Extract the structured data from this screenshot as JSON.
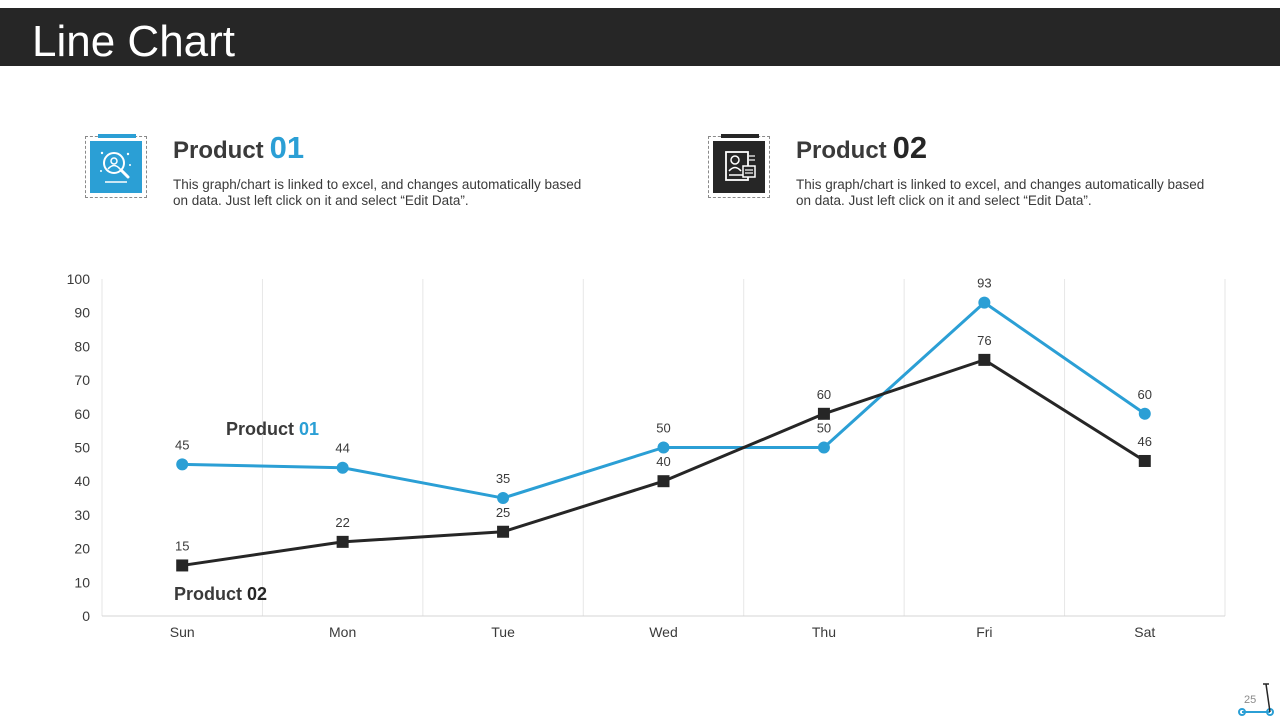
{
  "header": {
    "title": "Line Chart"
  },
  "colors": {
    "product1": "#2b9fd5",
    "product2": "#262626",
    "title_bar": "#262626"
  },
  "products": [
    {
      "name": "Product",
      "number": "01",
      "icon": "search-analytics-icon",
      "description": "This graph/chart is linked to excel,  and changes automatically based on data. Just left click on it and select “Edit Data”."
    },
    {
      "name": "Product",
      "number": "02",
      "icon": "profile-document-icon",
      "description": "This graph/chart is linked to excel,  and changes automatically based on data. Just left click on it and select “Edit Data”."
    }
  ],
  "chart_data": {
    "type": "line",
    "categories": [
      "Sun",
      "Mon",
      "Tue",
      "Wed",
      "Thu",
      "Fri",
      "Sat"
    ],
    "ylim": [
      0,
      100
    ],
    "yticks": [
      0,
      10,
      20,
      30,
      40,
      50,
      60,
      70,
      80,
      90,
      100
    ],
    "grid": "vertical",
    "data_labels": true,
    "series": [
      {
        "name": "Product 01",
        "label_prefix": "Product",
        "label_number": "01",
        "color": "#2b9fd5",
        "marker": "circle",
        "values": [
          45,
          44,
          35,
          50,
          50,
          93,
          60
        ]
      },
      {
        "name": "Product 02",
        "label_prefix": "Product",
        "label_number": "02",
        "color": "#262626",
        "marker": "square",
        "values": [
          15,
          22,
          25,
          40,
          60,
          76,
          46
        ]
      }
    ]
  },
  "footer": {
    "page_number": "25",
    "logo_icon": "scooter-icon"
  }
}
